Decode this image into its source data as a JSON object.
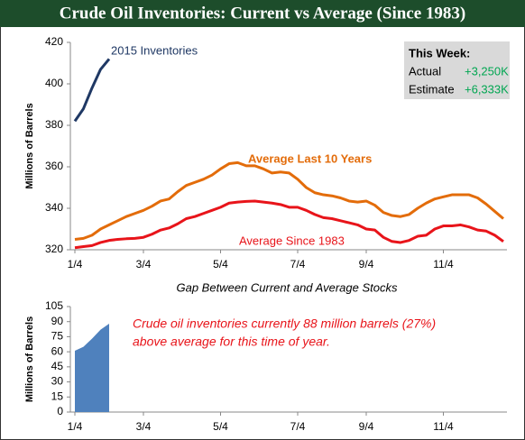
{
  "title": "Crude Oil Inventories: Current vs Average (Since 1983)",
  "chart_data": [
    {
      "type": "line",
      "ylabel": "Millions of Barrels",
      "ylim": [
        320,
        420
      ],
      "yticks": [
        320,
        340,
        360,
        380,
        400,
        420
      ],
      "categories": [
        "1/4",
        null,
        null,
        null,
        null,
        null,
        null,
        null,
        "3/4",
        null,
        null,
        null,
        null,
        null,
        null,
        null,
        null,
        "5/4",
        null,
        null,
        null,
        null,
        null,
        null,
        null,
        null,
        "7/4",
        null,
        null,
        null,
        null,
        null,
        null,
        null,
        "9/4",
        null,
        null,
        null,
        null,
        null,
        null,
        null,
        null,
        "11/4",
        null,
        null,
        null,
        null,
        null,
        null,
        null
      ],
      "series": [
        {
          "name": "2015 Inventories",
          "color": "#1f3864",
          "values": [
            382,
            388,
            398,
            407,
            412,
            null,
            null,
            null,
            null,
            null,
            null,
            null,
            null,
            null,
            null,
            null,
            null,
            null,
            null,
            null,
            null,
            null,
            null,
            null,
            null,
            null,
            null,
            null,
            null,
            null,
            null,
            null,
            null,
            null,
            null,
            null,
            null,
            null,
            null,
            null,
            null,
            null,
            null,
            null,
            null,
            null,
            null,
            null,
            null,
            null,
            null
          ]
        },
        {
          "name": "Average Last 10 Years",
          "color": "#e36c0a",
          "values": [
            325,
            325.5,
            327,
            330,
            332,
            334,
            336,
            337.5,
            339,
            341,
            343.5,
            344.5,
            348,
            351,
            352.5,
            354,
            356,
            359,
            361.5,
            362,
            360.5,
            360.5,
            359,
            357,
            357.5,
            357,
            354,
            350,
            347.5,
            346.5,
            346,
            345,
            343.5,
            343,
            343.5,
            341.5,
            338,
            336.5,
            336,
            337,
            340,
            342.5,
            344.5,
            345.5,
            346.5,
            346.5,
            346.5,
            345,
            342,
            338.5,
            335
          ]
        },
        {
          "name": "Average Since 1983",
          "color": "#e8141a",
          "values": [
            321,
            321.5,
            322,
            323.5,
            324.5,
            325,
            325.3,
            325.5,
            326,
            327.5,
            329.5,
            330.5,
            332.5,
            335,
            336,
            337.5,
            339,
            340.5,
            342.5,
            343,
            343.3,
            343.5,
            343,
            342.5,
            341.8,
            340.5,
            340.5,
            339,
            337,
            335.5,
            335,
            334,
            333,
            332,
            330,
            329.5,
            326,
            324,
            323.5,
            324.5,
            326.5,
            327,
            330,
            331.5,
            331.5,
            332,
            331,
            329.5,
            329,
            327,
            324
          ]
        }
      ],
      "info_box": {
        "title": "This Week:",
        "rows": [
          [
            "Actual",
            "+3,250K"
          ],
          [
            "Estimate",
            "+6,333K"
          ]
        ]
      }
    },
    {
      "type": "area",
      "title": "Gap Between Current and Average Stocks",
      "ylabel": "Millions of Barrels",
      "ylim": [
        0,
        105
      ],
      "yticks": [
        0,
        15,
        30,
        45,
        60,
        75,
        90,
        105
      ],
      "categories": [
        "1/4",
        null,
        null,
        null,
        null,
        null,
        null,
        null,
        "3/4",
        null,
        null,
        null,
        null,
        null,
        null,
        null,
        null,
        "5/4",
        null,
        null,
        null,
        null,
        null,
        null,
        null,
        null,
        "7/4",
        null,
        null,
        null,
        null,
        null,
        null,
        null,
        "9/4",
        null,
        null,
        null,
        null,
        null,
        null,
        null,
        null,
        "11/4",
        null,
        null,
        null,
        null,
        null,
        null,
        null
      ],
      "color": "#4f81bd",
      "values": [
        61,
        65,
        73,
        82,
        88,
        null,
        null,
        null,
        null,
        null,
        null,
        null,
        null,
        null,
        null,
        null,
        null,
        null,
        null,
        null,
        null,
        null,
        null,
        null,
        null,
        null,
        null,
        null,
        null,
        null,
        null,
        null,
        null,
        null,
        null,
        null,
        null,
        null,
        null,
        null,
        null,
        null,
        null,
        null,
        null,
        null,
        null,
        null,
        null,
        null,
        null
      ],
      "annotation": [
        "Crude oil inventories currently 88 million barrels (27%)",
        "above average for this time of year."
      ]
    }
  ]
}
